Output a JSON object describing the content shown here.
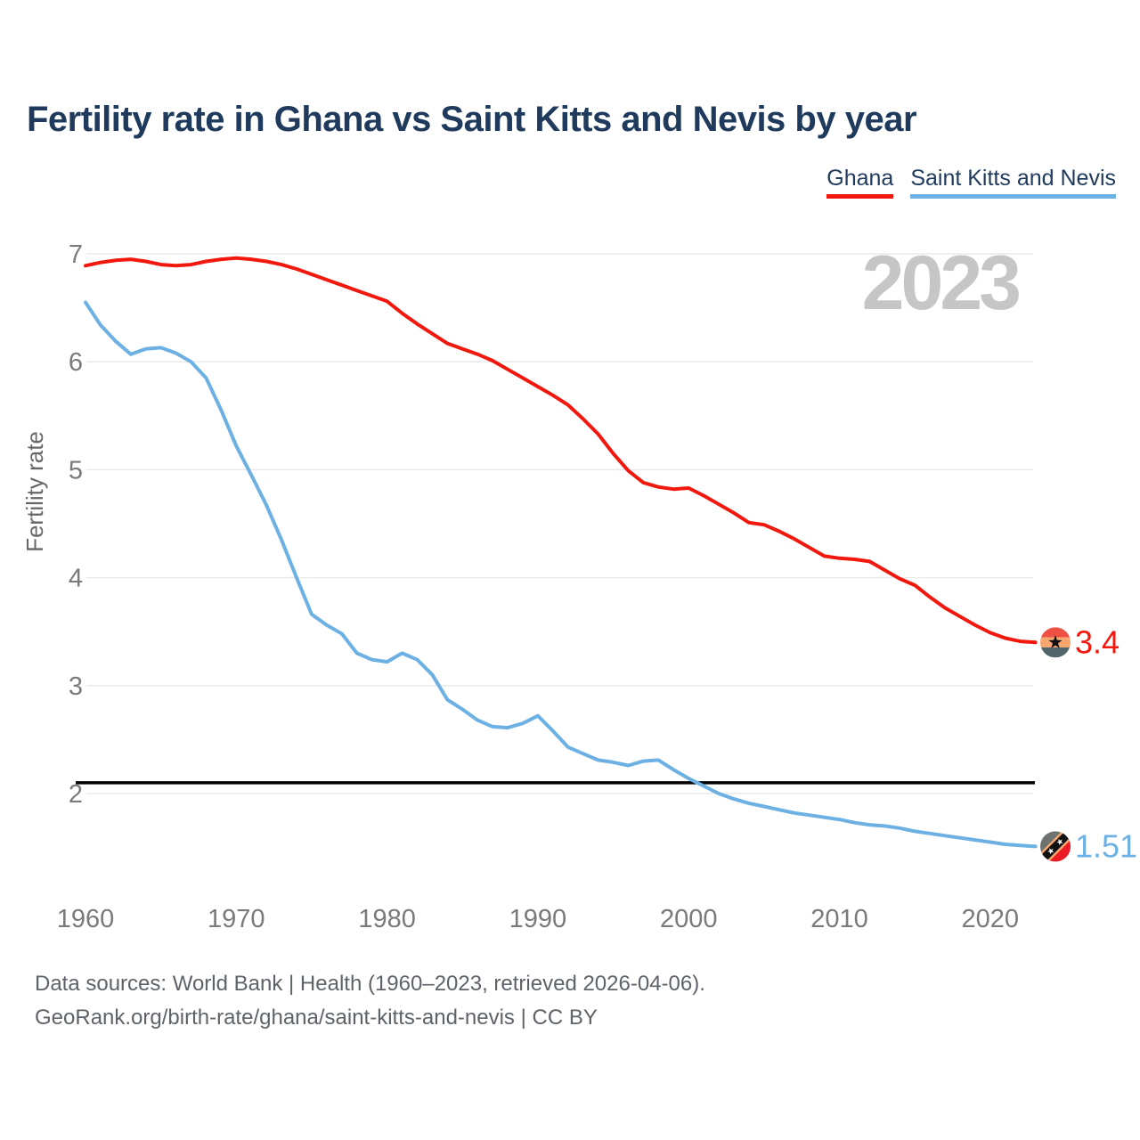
{
  "title": "Fertility rate in Ghana vs Saint Kitts and Nevis by year",
  "watermark": "2023",
  "legend": {
    "items": [
      {
        "label": "Ghana",
        "underline_color": "#f2180d"
      },
      {
        "label": "Saint Kitts and Nevis",
        "underline_color": "#6cb0e4"
      }
    ]
  },
  "y_axis": {
    "label": "Fertility rate",
    "ticks": [
      "7",
      "6",
      "5",
      "4",
      "3",
      "2"
    ]
  },
  "x_axis": {
    "ticks": [
      "1960",
      "1970",
      "1980",
      "1990",
      "2000",
      "2010",
      "2020"
    ]
  },
  "reference_line": {
    "value": 2.1,
    "color": "#000000"
  },
  "end_labels": {
    "ghana": "3.4",
    "saint_kitts": "1.51"
  },
  "icons": {
    "ghana_flag": {
      "name": "ghana-flag-icon",
      "stripe_top": "#ef5044",
      "stripe_middle": "#f9a771",
      "stripe_bottom": "#50666b",
      "star": "#111111"
    },
    "saint_kitts_flag": {
      "name": "saint-kitts-and-nevis-flag-icon",
      "field_upper": "#6d7370",
      "field_lower": "#ec1c24",
      "band_edge": "#f9a771",
      "band": "#111111",
      "stars": "#ffffff"
    }
  },
  "colors": {
    "title": "#1f3a5c",
    "axis_text": "#7a7a7a",
    "gridline": "#eaeaea",
    "watermark": "#c6c6c6",
    "footer_text": "#5d6368",
    "ghana_line": "#f2180d",
    "saint_kitts_line": "#6cb0e4",
    "reference_line": "#000000"
  },
  "footer": {
    "line1": "Data sources: World Bank | Health (1960–2023, retrieved 2026-04-06).",
    "line2": "GeoRank.org/birth-rate/ghana/saint-kitts-and-nevis | CC BY"
  },
  "chart_data": {
    "type": "line",
    "title": "Fertility rate in Ghana vs Saint Kitts and Nevis by year",
    "xlabel": "",
    "ylabel": "Fertility rate",
    "x_range": [
      1960,
      2023
    ],
    "ylim": [
      1.3,
      7.1
    ],
    "grid": "horizontal",
    "legend_position": "top-right",
    "annotations": {
      "year_watermark": "2023",
      "replacement_level_line": 2.1
    },
    "x": [
      1960,
      1961,
      1962,
      1963,
      1964,
      1965,
      1966,
      1967,
      1968,
      1969,
      1970,
      1971,
      1972,
      1973,
      1974,
      1975,
      1976,
      1977,
      1978,
      1979,
      1980,
      1981,
      1982,
      1983,
      1984,
      1985,
      1986,
      1987,
      1988,
      1989,
      1990,
      1991,
      1992,
      1993,
      1994,
      1995,
      1996,
      1997,
      1998,
      1999,
      2000,
      2001,
      2002,
      2003,
      2004,
      2005,
      2006,
      2007,
      2008,
      2009,
      2010,
      2011,
      2012,
      2013,
      2014,
      2015,
      2016,
      2017,
      2018,
      2019,
      2020,
      2021,
      2022,
      2023
    ],
    "series": [
      {
        "name": "Ghana",
        "color": "#f2180d",
        "end_value_label": "3.4",
        "values": [
          6.89,
          6.92,
          6.94,
          6.95,
          6.93,
          6.9,
          6.89,
          6.9,
          6.93,
          6.95,
          6.96,
          6.95,
          6.93,
          6.9,
          6.86,
          6.81,
          6.76,
          6.71,
          6.66,
          6.61,
          6.56,
          6.45,
          6.35,
          6.26,
          6.17,
          6.12,
          6.07,
          6.01,
          5.93,
          5.85,
          5.77,
          5.69,
          5.6,
          5.47,
          5.33,
          5.15,
          4.99,
          4.88,
          4.84,
          4.82,
          4.83,
          4.76,
          4.68,
          4.6,
          4.51,
          4.49,
          4.43,
          4.36,
          4.28,
          4.2,
          4.18,
          4.17,
          4.15,
          4.07,
          3.99,
          3.93,
          3.82,
          3.72,
          3.64,
          3.56,
          3.49,
          3.44,
          3.41,
          3.4
        ]
      },
      {
        "name": "Saint Kitts and Nevis",
        "color": "#6cb0e4",
        "end_value_label": "1.51",
        "values": [
          6.55,
          6.34,
          6.19,
          6.07,
          6.12,
          6.13,
          6.08,
          6.0,
          5.85,
          5.55,
          5.22,
          4.95,
          4.67,
          4.35,
          4.0,
          3.66,
          3.56,
          3.48,
          3.3,
          3.24,
          3.22,
          3.3,
          3.24,
          3.1,
          2.87,
          2.78,
          2.68,
          2.62,
          2.61,
          2.65,
          2.72,
          2.58,
          2.43,
          2.37,
          2.31,
          2.29,
          2.26,
          2.3,
          2.31,
          2.22,
          2.14,
          2.07,
          2.0,
          1.95,
          1.91,
          1.88,
          1.85,
          1.82,
          1.8,
          1.78,
          1.76,
          1.73,
          1.71,
          1.7,
          1.68,
          1.65,
          1.63,
          1.61,
          1.59,
          1.57,
          1.55,
          1.53,
          1.52,
          1.51
        ]
      }
    ]
  }
}
